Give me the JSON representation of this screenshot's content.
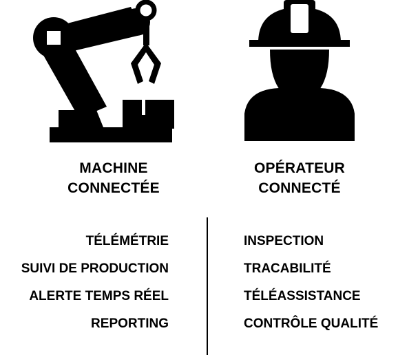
{
  "machine": {
    "icon": "robot-arm-icon",
    "title_line1": "MACHINE",
    "title_line2": "CONNECTÉE",
    "features": [
      "TÉLÉMÉTRIE",
      "SUIVI DE PRODUCTION",
      "ALERTE TEMPS RÉEL",
      "REPORTING"
    ]
  },
  "operator": {
    "icon": "worker-hardhat-icon",
    "title_line1": "OPÉRATEUR",
    "title_line2": "CONNECTÉ",
    "features": [
      "INSPECTION",
      "TRACABILITÉ",
      "TÉLÉASSISTANCE",
      "CONTRÔLE QUALITÉ"
    ]
  }
}
